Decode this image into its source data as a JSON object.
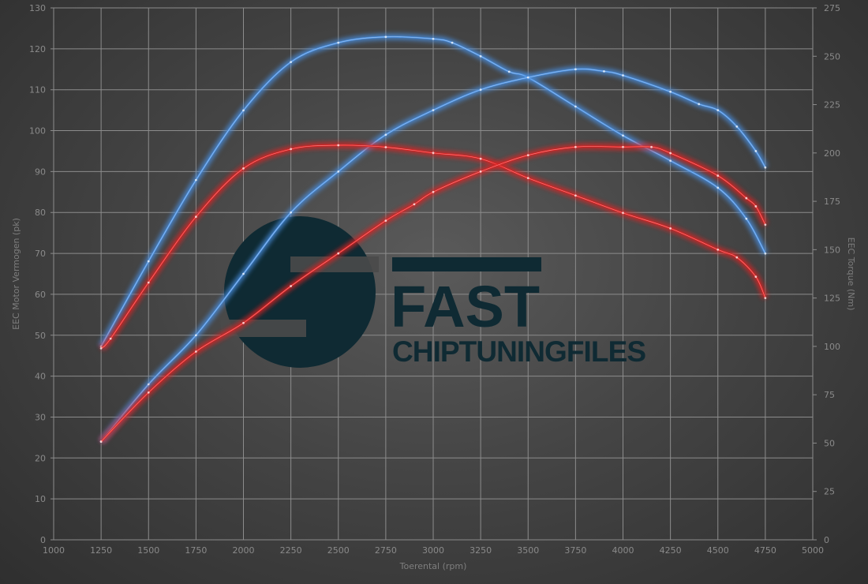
{
  "chart_data": {
    "type": "line",
    "title": "",
    "xlabel": "Toerental (rpm)",
    "ylabel_left": "EEC Motor Vermogen (pk)",
    "ylabel_right": "EEC Torque (Nm)",
    "xlim": [
      1000,
      5000
    ],
    "ylim_left": [
      0,
      130
    ],
    "ylim_right": [
      0,
      275
    ],
    "x_ticks": [
      1000,
      1250,
      1500,
      1750,
      2000,
      2250,
      2500,
      2750,
      3000,
      3250,
      3500,
      3750,
      4000,
      4250,
      4500,
      4750,
      5000
    ],
    "y_ticks_left": [
      0,
      10,
      20,
      30,
      40,
      50,
      60,
      70,
      80,
      90,
      100,
      110,
      120,
      130
    ],
    "y_ticks_right": [
      0,
      25,
      50,
      75,
      100,
      125,
      150,
      175,
      200,
      225,
      250,
      275
    ],
    "grid": true,
    "colors": {
      "blue": "#4a90e2",
      "red": "#e02020"
    },
    "series": [
      {
        "color": "blue",
        "axis": "right",
        "unit": "Nm",
        "x": [
          1250,
          1500,
          1750,
          2000,
          2250,
          2500,
          2750,
          3000,
          3100,
          3250,
          3400,
          3500,
          3750,
          4000,
          4250,
          4500,
          4650,
          4750
        ],
        "y": [
          100,
          144,
          186,
          222,
          247,
          257,
          260,
          259,
          257,
          250,
          242,
          239,
          224,
          209,
          196,
          182,
          166,
          148
        ]
      },
      {
        "color": "blue",
        "axis": "left",
        "unit": "pk",
        "x": [
          1250,
          1500,
          1750,
          2000,
          2250,
          2500,
          2750,
          3000,
          3250,
          3500,
          3750,
          3900,
          4000,
          4250,
          4400,
          4500,
          4600,
          4700,
          4750
        ],
        "y": [
          24,
          38,
          50,
          65,
          80,
          90,
          99,
          105,
          110,
          113,
          115,
          114.5,
          113.5,
          109.5,
          106.5,
          105,
          101,
          95,
          91
        ]
      },
      {
        "color": "red",
        "axis": "right",
        "unit": "Nm",
        "x": [
          1250,
          1300,
          1500,
          1750,
          2000,
          2250,
          2500,
          2750,
          3000,
          3250,
          3500,
          3750,
          4000,
          4250,
          4500,
          4600,
          4700,
          4750
        ],
        "y": [
          99,
          104,
          133,
          167,
          192,
          202,
          204,
          203,
          200,
          197,
          187,
          178,
          169,
          161,
          150,
          146,
          136,
          125
        ]
      },
      {
        "color": "red",
        "axis": "left",
        "unit": "pk",
        "x": [
          1250,
          1500,
          1750,
          2000,
          2250,
          2500,
          2750,
          2900,
          3000,
          3250,
          3500,
          3750,
          4000,
          4150,
          4250,
          4500,
          4650,
          4700,
          4750
        ],
        "y": [
          24,
          36,
          46,
          53,
          62,
          70,
          78,
          82,
          85,
          90,
          94,
          96,
          96,
          96,
          94.5,
          89,
          83.5,
          81.5,
          77
        ]
      }
    ]
  },
  "watermark": {
    "line1": "FAST",
    "line2": "CHIPTUNINGFILES"
  }
}
